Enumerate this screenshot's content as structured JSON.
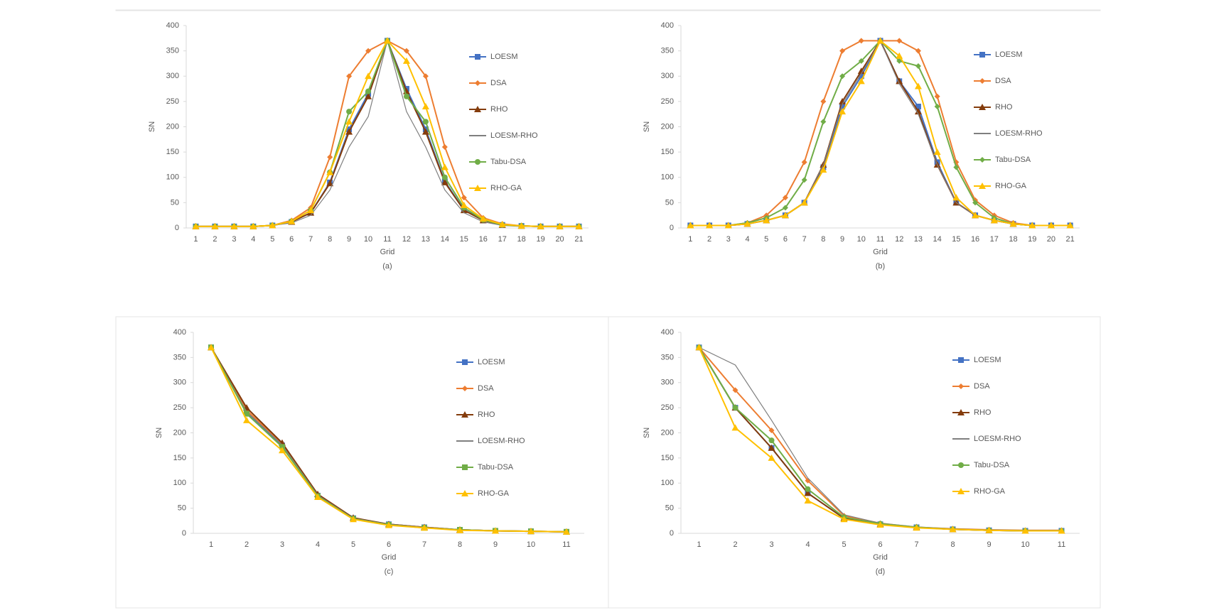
{
  "chart_data": [
    {
      "type": "line",
      "xlabel": "Grid",
      "ylabel": "SN",
      "caption": "(a)",
      "categories": [
        "1",
        "2",
        "3",
        "4",
        "5",
        "6",
        "7",
        "8",
        "9",
        "10",
        "11",
        "12",
        "13",
        "14",
        "15",
        "16",
        "17",
        "18",
        "19",
        "20",
        "21"
      ],
      "ylim": [
        0,
        400
      ],
      "yticks": [
        0,
        50,
        100,
        150,
        200,
        250,
        300,
        350,
        400
      ],
      "series": [
        {
          "name": "LOESM",
          "color": "#4472c4",
          "marker": "square",
          "values": [
            3,
            3,
            3,
            3,
            5,
            12,
            30,
            90,
            195,
            265,
            370,
            275,
            195,
            92,
            36,
            15,
            6,
            4,
            3,
            3,
            3
          ]
        },
        {
          "name": "DSA",
          "color": "#ed7d31",
          "marker": "diamond",
          "values": [
            3,
            3,
            3,
            3,
            5,
            15,
            40,
            140,
            300,
            350,
            370,
            350,
            300,
            160,
            60,
            20,
            8,
            4,
            3,
            3,
            3
          ]
        },
        {
          "name": "RHO",
          "color": "#843c0c",
          "marker": "triangle",
          "values": [
            3,
            3,
            3,
            3,
            5,
            12,
            30,
            88,
            190,
            260,
            370,
            270,
            190,
            90,
            35,
            15,
            6,
            4,
            3,
            3,
            3
          ]
        },
        {
          "name": "LOESM-RHO",
          "color": "#7f7f7f",
          "marker": "none",
          "values": [
            3,
            3,
            3,
            3,
            5,
            10,
            25,
            75,
            160,
            220,
            370,
            230,
            160,
            75,
            30,
            12,
            5,
            3,
            3,
            3,
            3
          ]
        },
        {
          "name": "Tabu-DSA",
          "color": "#70ad47",
          "marker": "circle",
          "values": [
            3,
            3,
            3,
            3,
            5,
            13,
            35,
            110,
            230,
            270,
            370,
            260,
            210,
            100,
            40,
            16,
            6,
            4,
            3,
            3,
            3
          ]
        },
        {
          "name": "RHO-GA",
          "color": "#ffc000",
          "marker": "triangle",
          "values": [
            3,
            3,
            3,
            3,
            5,
            13,
            35,
            110,
            210,
            300,
            370,
            330,
            240,
            120,
            45,
            18,
            7,
            4,
            3,
            3,
            3
          ]
        }
      ]
    },
    {
      "type": "line",
      "xlabel": "Grid",
      "ylabel": "SN",
      "caption": "(b)",
      "categories": [
        "1",
        "2",
        "3",
        "4",
        "5",
        "6",
        "7",
        "8",
        "9",
        "10",
        "11",
        "12",
        "13",
        "14",
        "15",
        "16",
        "17",
        "18",
        "19",
        "20",
        "21"
      ],
      "ylim": [
        0,
        400
      ],
      "yticks": [
        0,
        50,
        100,
        150,
        200,
        250,
        300,
        350,
        400
      ],
      "series": [
        {
          "name": "LOESM",
          "color": "#4472c4",
          "marker": "square",
          "values": [
            5,
            5,
            5,
            8,
            15,
            25,
            50,
            120,
            240,
            300,
            370,
            290,
            240,
            130,
            50,
            25,
            15,
            8,
            5,
            5,
            5
          ]
        },
        {
          "name": "DSA",
          "color": "#ed7d31",
          "marker": "diamond",
          "values": [
            5,
            5,
            5,
            10,
            25,
            60,
            130,
            250,
            350,
            370,
            370,
            370,
            350,
            260,
            130,
            55,
            25,
            10,
            5,
            5,
            5
          ]
        },
        {
          "name": "RHO",
          "color": "#843c0c",
          "marker": "triangle",
          "values": [
            5,
            5,
            5,
            8,
            15,
            25,
            50,
            125,
            250,
            310,
            370,
            290,
            230,
            125,
            50,
            25,
            15,
            8,
            5,
            5,
            5
          ]
        },
        {
          "name": "LOESM-RHO",
          "color": "#7f7f7f",
          "marker": "none",
          "values": [
            5,
            5,
            5,
            8,
            15,
            25,
            50,
            125,
            245,
            305,
            370,
            285,
            225,
            125,
            50,
            25,
            15,
            8,
            5,
            5,
            5
          ]
        },
        {
          "name": "Tabu-DSA",
          "color": "#70ad47",
          "marker": "diamond",
          "values": [
            5,
            5,
            5,
            10,
            20,
            40,
            95,
            210,
            300,
            330,
            370,
            330,
            320,
            240,
            120,
            50,
            20,
            8,
            5,
            5,
            5
          ]
        },
        {
          "name": "RHO-GA",
          "color": "#ffc000",
          "marker": "triangle",
          "values": [
            5,
            5,
            5,
            8,
            15,
            25,
            50,
            115,
            230,
            290,
            370,
            340,
            280,
            150,
            60,
            25,
            15,
            8,
            5,
            5,
            5
          ]
        }
      ]
    },
    {
      "type": "line",
      "xlabel": "Grid",
      "ylabel": "SN",
      "caption": "(c)",
      "categories": [
        "1",
        "2",
        "3",
        "4",
        "5",
        "6",
        "7",
        "8",
        "9",
        "10",
        "11"
      ],
      "ylim": [
        0,
        400
      ],
      "yticks": [
        0,
        50,
        100,
        150,
        200,
        250,
        300,
        350,
        400
      ],
      "series": [
        {
          "name": "LOESM",
          "color": "#4472c4",
          "marker": "square",
          "values": [
            370,
            240,
            175,
            75,
            30,
            18,
            12,
            7,
            5,
            4,
            3
          ]
        },
        {
          "name": "DSA",
          "color": "#ed7d31",
          "marker": "diamond",
          "values": [
            370,
            245,
            178,
            77,
            30,
            18,
            12,
            7,
            5,
            4,
            3
          ]
        },
        {
          "name": "RHO",
          "color": "#843c0c",
          "marker": "triangle",
          "values": [
            370,
            250,
            180,
            78,
            31,
            18,
            12,
            7,
            5,
            4,
            3
          ]
        },
        {
          "name": "LOESM-RHO",
          "color": "#7f7f7f",
          "marker": "none",
          "values": [
            370,
            242,
            176,
            76,
            30,
            18,
            12,
            7,
            5,
            4,
            3
          ]
        },
        {
          "name": "Tabu-DSA",
          "color": "#70ad47",
          "marker": "square",
          "values": [
            370,
            238,
            172,
            74,
            29,
            17,
            11,
            7,
            5,
            4,
            3
          ]
        },
        {
          "name": "RHO-GA",
          "color": "#ffc000",
          "marker": "triangle",
          "values": [
            370,
            225,
            165,
            72,
            28,
            16,
            11,
            6,
            5,
            4,
            3
          ]
        }
      ]
    },
    {
      "type": "line",
      "xlabel": "Grid",
      "ylabel": "SN",
      "caption": "(d)",
      "categories": [
        "1",
        "2",
        "3",
        "4",
        "5",
        "6",
        "7",
        "8",
        "9",
        "10",
        "11"
      ],
      "ylim": [
        0,
        400
      ],
      "yticks": [
        0,
        50,
        100,
        150,
        200,
        250,
        300,
        350,
        400
      ],
      "series": [
        {
          "name": "LOESM",
          "color": "#4472c4",
          "marker": "square",
          "values": [
            370,
            250,
            170,
            80,
            30,
            18,
            12,
            8,
            6,
            5,
            5
          ]
        },
        {
          "name": "DSA",
          "color": "#ed7d31",
          "marker": "diamond",
          "values": [
            370,
            285,
            205,
            105,
            35,
            20,
            12,
            9,
            7,
            6,
            6
          ]
        },
        {
          "name": "RHO",
          "color": "#843c0c",
          "marker": "triangle",
          "values": [
            370,
            250,
            170,
            80,
            30,
            18,
            12,
            8,
            6,
            5,
            5
          ]
        },
        {
          "name": "LOESM-RHO",
          "color": "#7f7f7f",
          "marker": "none",
          "values": [
            370,
            335,
            225,
            110,
            37,
            20,
            13,
            9,
            7,
            6,
            6
          ]
        },
        {
          "name": "Tabu-DSA",
          "color": "#70ad47",
          "marker": "circle",
          "values": [
            370,
            250,
            185,
            88,
            32,
            19,
            12,
            8,
            6,
            5,
            5
          ]
        },
        {
          "name": "RHO-GA",
          "color": "#ffc000",
          "marker": "triangle",
          "values": [
            370,
            210,
            150,
            65,
            28,
            17,
            11,
            8,
            6,
            5,
            5
          ]
        }
      ]
    }
  ]
}
